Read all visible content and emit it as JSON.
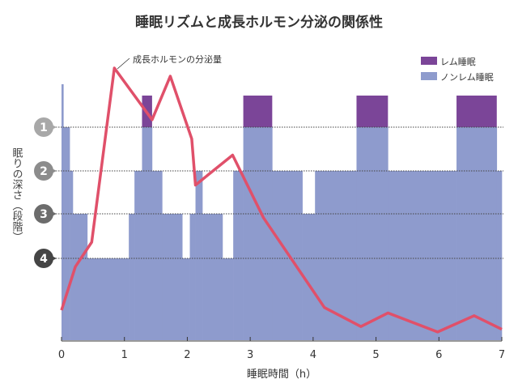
{
  "chart_data": {
    "type": "step-area+line",
    "title": "睡眠リズムと成長ホルモン分泌の関係性",
    "xlabel": "睡眠時間（h）",
    "ylabel": "眠りの深さ（段階）",
    "xlim": [
      0,
      7
    ],
    "x_ticks": [
      "0",
      "1",
      "2",
      "3",
      "4",
      "5",
      "6",
      "7"
    ],
    "depth_levels": [
      "1",
      "2",
      "3",
      "4"
    ],
    "grid": "dotted horizontal at each depth level",
    "legend": {
      "placement": "top-right",
      "items": [
        {
          "label": "レム睡眠",
          "color": "#7b4598"
        },
        {
          "label": "ノンレム睡眠",
          "color": "#8e9bcd"
        }
      ]
    },
    "sleep_stages": [
      {
        "start": 0.0,
        "end": 0.03,
        "stage": "W"
      },
      {
        "start": 0.03,
        "end": 0.13,
        "stage": 1
      },
      {
        "start": 0.13,
        "end": 0.18,
        "stage": 2
      },
      {
        "start": 0.18,
        "end": 0.41,
        "stage": 3
      },
      {
        "start": 0.41,
        "end": 1.07,
        "stage": 4
      },
      {
        "start": 1.07,
        "end": 1.16,
        "stage": 3
      },
      {
        "start": 1.16,
        "end": 1.28,
        "stage": 2
      },
      {
        "start": 1.28,
        "end": 1.44,
        "stage": "REM"
      },
      {
        "start": 1.44,
        "end": 1.6,
        "stage": 2
      },
      {
        "start": 1.6,
        "end": 1.92,
        "stage": 3
      },
      {
        "start": 1.92,
        "end": 2.04,
        "stage": 4
      },
      {
        "start": 2.04,
        "end": 2.13,
        "stage": 3
      },
      {
        "start": 2.13,
        "end": 2.24,
        "stage": 2
      },
      {
        "start": 2.24,
        "end": 2.56,
        "stage": 3
      },
      {
        "start": 2.56,
        "end": 2.73,
        "stage": 4
      },
      {
        "start": 2.73,
        "end": 2.89,
        "stage": 2
      },
      {
        "start": 2.89,
        "end": 3.35,
        "stage": "REM"
      },
      {
        "start": 3.35,
        "end": 3.83,
        "stage": 2
      },
      {
        "start": 3.83,
        "end": 4.03,
        "stage": 3
      },
      {
        "start": 4.03,
        "end": 4.69,
        "stage": 2
      },
      {
        "start": 4.69,
        "end": 5.19,
        "stage": "REM"
      },
      {
        "start": 5.19,
        "end": 6.28,
        "stage": 2
      },
      {
        "start": 6.28,
        "end": 6.92,
        "stage": "REM"
      },
      {
        "start": 6.92,
        "end": 7.0,
        "stage": 2
      }
    ],
    "series": [
      {
        "name": "成長ホルモンの分泌量",
        "color": "#e0506a",
        "x": [
          0,
          0.22,
          0.48,
          0.84,
          1.44,
          1.73,
          2.07,
          2.13,
          2.72,
          3.21,
          4.18,
          4.76,
          5.19,
          5.98,
          6.56,
          7.0
        ],
        "y_relative": [
          0.11,
          0.27,
          0.36,
          1.0,
          0.81,
          0.97,
          0.74,
          0.57,
          0.68,
          0.45,
          0.12,
          0.05,
          0.1,
          0.03,
          0.09,
          0.04
        ]
      }
    ],
    "annotation": "成長ホルモンの分泌量",
    "colors": {
      "rem": "#7b4598",
      "nonrem": "#8e9bcd",
      "hormone": "#e0506a"
    },
    "level_marker_colors": [
      "#a8a8a8",
      "#8c8c8c",
      "#6c6c6c",
      "#454545"
    ]
  }
}
